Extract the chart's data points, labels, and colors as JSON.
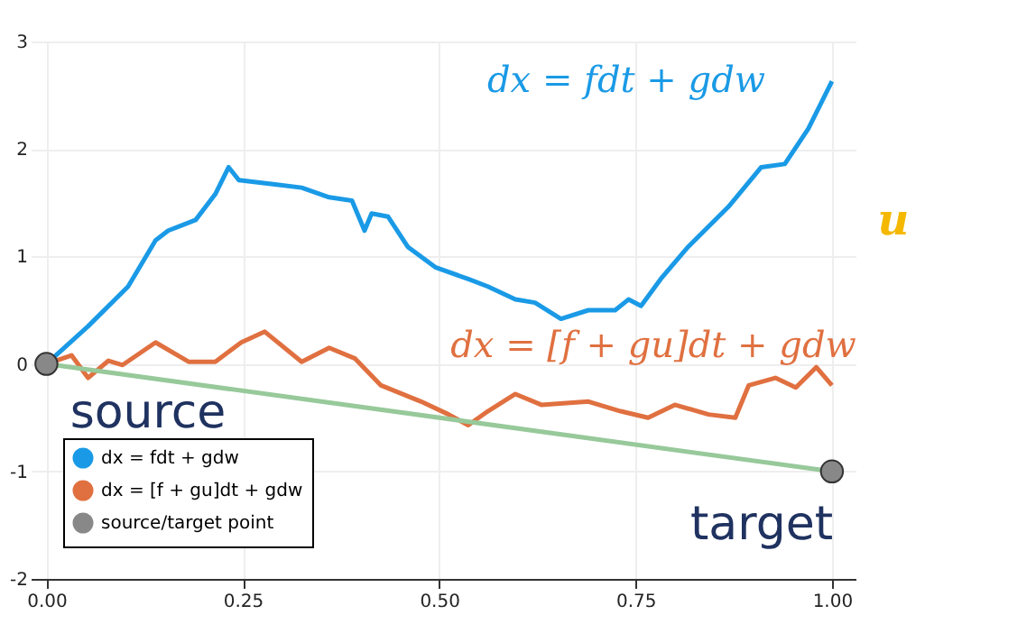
{
  "chart_data": {
    "type": "line",
    "xlim": [
      -0.02,
      1.03
    ],
    "ylim": [
      -2,
      3
    ],
    "xticks": [
      {
        "value": 0,
        "label": "0.00"
      },
      {
        "value": 0.25,
        "label": "0.25"
      },
      {
        "value": 0.5,
        "label": "0.50"
      },
      {
        "value": 0.75,
        "label": "0.75"
      },
      {
        "value": 1,
        "label": "1.00"
      }
    ],
    "yticks": [
      -2,
      -1,
      0,
      1,
      2,
      3
    ],
    "grid": true,
    "legend": "bottom left",
    "line_style": "solid",
    "series": [
      {
        "name": "dx = fdt + gdw",
        "color": "#1a9ae6",
        "x": [
          0,
          0.053,
          0.104,
          0.139,
          0.155,
          0.19,
          0.215,
          0.232,
          0.245,
          0.291,
          0.325,
          0.36,
          0.389,
          0.405,
          0.414,
          0.435,
          0.46,
          0.495,
          0.537,
          0.562,
          0.597,
          0.622,
          0.655,
          0.69,
          0.724,
          0.741,
          0.757,
          0.782,
          0.817,
          0.868,
          0.91,
          0.94,
          0.97,
          1.0
        ],
        "values": [
          0,
          0.35,
          0.72,
          1.15,
          1.24,
          1.34,
          1.58,
          1.83,
          1.71,
          1.67,
          1.64,
          1.55,
          1.52,
          1.24,
          1.4,
          1.37,
          1.09,
          0.9,
          0.79,
          0.72,
          0.6,
          0.57,
          0.42,
          0.5,
          0.5,
          0.6,
          0.54,
          0.79,
          1.09,
          1.46,
          1.83,
          1.86,
          2.19,
          2.63
        ]
      },
      {
        "name": "dx = [f + gu]dt + gdw",
        "color": "#e07040",
        "x": [
          0,
          0.032,
          0.053,
          0.079,
          0.097,
          0.139,
          0.181,
          0.215,
          0.248,
          0.278,
          0.325,
          0.36,
          0.393,
          0.426,
          0.477,
          0.512,
          0.537,
          0.562,
          0.597,
          0.63,
          0.69,
          0.731,
          0.766,
          0.8,
          0.843,
          0.877,
          0.894,
          0.928,
          0.954,
          0.98,
          1.0
        ],
        "values": [
          0,
          0.08,
          -0.13,
          0.03,
          -0.01,
          0.2,
          0.02,
          0.02,
          0.2,
          0.3,
          0.02,
          0.15,
          0.05,
          -0.2,
          -0.35,
          -0.47,
          -0.57,
          -0.44,
          -0.28,
          -0.38,
          -0.35,
          -0.44,
          -0.5,
          -0.38,
          -0.47,
          -0.5,
          -0.2,
          -0.13,
          -0.22,
          -0.03,
          -0.2
        ]
      },
      {
        "color": "#97c99a",
        "x": [
          0,
          1
        ],
        "values": [
          0,
          -1
        ]
      },
      {
        "name": "source/target point",
        "color": "#888888",
        "type": "scatter",
        "marker": "circle",
        "x": [
          0,
          1
        ],
        "values": [
          0,
          -1
        ]
      }
    ],
    "annotations": [
      "dx = fdt + gdw",
      "dx = [f + gu]dt + gdw",
      "source",
      "target",
      "u"
    ]
  }
}
